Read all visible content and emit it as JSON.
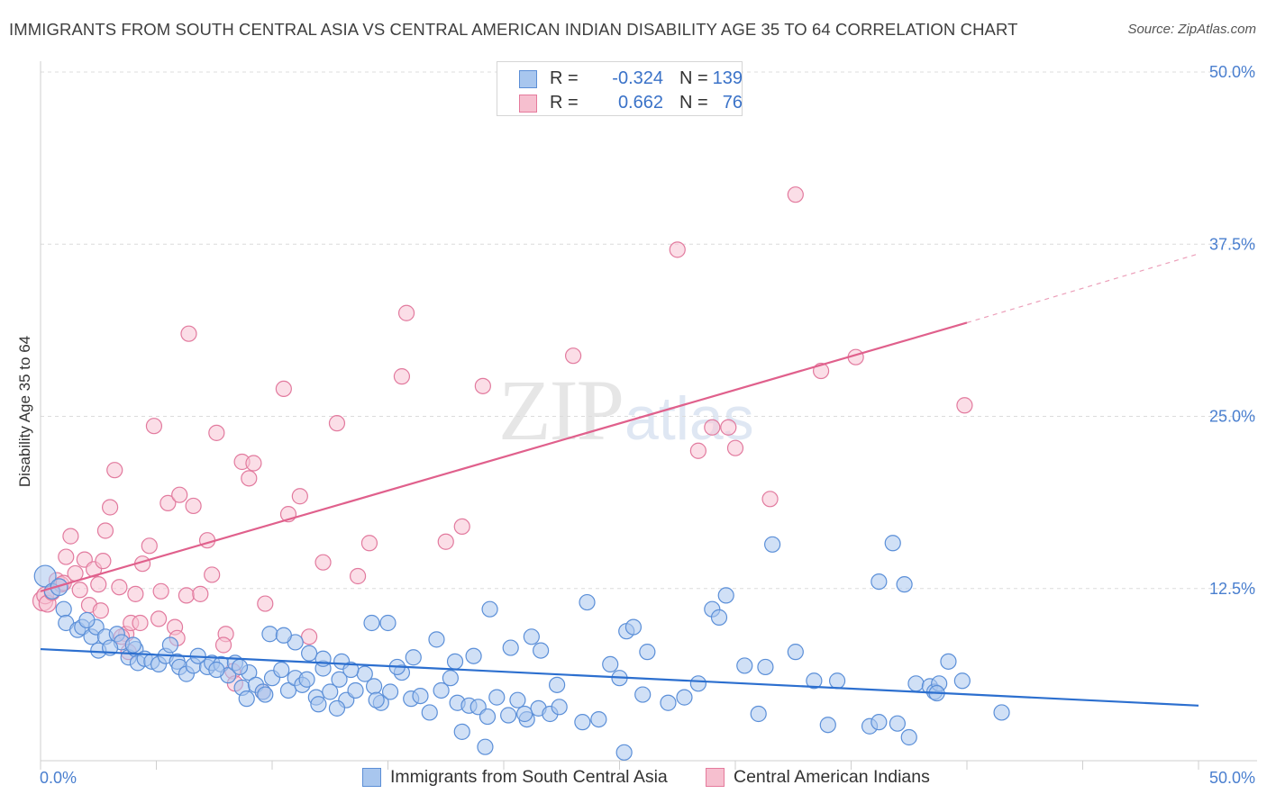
{
  "title": "IMMIGRANTS FROM SOUTH CENTRAL ASIA VS CENTRAL AMERICAN INDIAN DISABILITY AGE 35 TO 64 CORRELATION CHART",
  "source": "Source: ZipAtlas.com",
  "watermark": {
    "zip": "ZIP",
    "atlas": "atlas"
  },
  "legend": {
    "rows": [
      {
        "r_label": "R =",
        "r_value": "-0.324",
        "n_label": "N =",
        "n_value": "139",
        "color": "#a8c6ee",
        "border": "#5b8ed6"
      },
      {
        "r_label": "R =",
        "r_value": "0.662",
        "n_label": "N =",
        "n_value": "76",
        "color": "#f6bfcf",
        "border": "#e57a9c"
      }
    ]
  },
  "bottom_legend": {
    "series_a": "Immigrants from South Central Asia",
    "series_b": "Central American Indians"
  },
  "colors": {
    "blue_fill": "#a9c7ef",
    "blue_stroke": "#5b8fd8",
    "blue_line": "#2c6fcf",
    "pink_fill": "#f7c3d3",
    "pink_stroke": "#e27a9e",
    "pink_line": "#e0608c",
    "grid": "#dcdcdc",
    "tick_text": "#4a7fcf"
  },
  "chart_data": {
    "type": "scatter",
    "title": "IMMIGRANTS FROM SOUTH CENTRAL ASIA VS CENTRAL AMERICAN INDIAN DISABILITY AGE 35 TO 64 CORRELATION CHART",
    "xlabel": "",
    "ylabel": "Disability Age 35 to 64",
    "xlim": [
      0,
      50
    ],
    "ylim": [
      0,
      50
    ],
    "x_tick_labels": [
      "0.0%",
      "50.0%"
    ],
    "y_tick_labels": [
      "12.5%",
      "25.0%",
      "37.5%",
      "50.0%"
    ],
    "y_ticks": [
      12.5,
      25.0,
      37.5,
      50.0
    ],
    "series": [
      {
        "name": "Immigrants from South Central Asia",
        "r": -0.324,
        "n": 139,
        "trend": {
          "x": [
            0,
            50
          ],
          "y": [
            8.1,
            4.0
          ]
        },
        "points": [
          [
            0.2,
            13.4,
            1.4
          ],
          [
            0.5,
            12.3,
            1.0
          ],
          [
            0.8,
            12.6,
            1.1
          ],
          [
            1.0,
            11.0,
            1.0
          ],
          [
            1.1,
            10.0,
            1.0
          ],
          [
            1.6,
            9.5,
            1.0
          ],
          [
            1.8,
            9.7,
            1.0
          ],
          [
            2.2,
            9.0,
            1.0
          ],
          [
            2.4,
            9.7,
            1.0
          ],
          [
            2.5,
            8.0,
            1.0
          ],
          [
            2.8,
            9.0,
            1.0
          ],
          [
            3.3,
            9.2,
            1.0
          ],
          [
            3.5,
            8.6,
            1.0
          ],
          [
            3.8,
            7.5,
            1.0
          ],
          [
            4.1,
            8.1,
            1.0
          ],
          [
            4.2,
            7.1,
            1.0
          ],
          [
            4.5,
            7.4,
            1.0
          ],
          [
            4.8,
            7.2,
            1.0
          ],
          [
            5.1,
            7.0,
            1.0
          ],
          [
            5.4,
            7.6,
            1.0
          ],
          [
            5.9,
            7.2,
            1.0
          ],
          [
            6.0,
            6.8,
            1.0
          ],
          [
            6.3,
            6.3,
            1.0
          ],
          [
            6.6,
            6.9,
            1.0
          ],
          [
            7.2,
            6.8,
            1.0
          ],
          [
            7.4,
            7.1,
            1.0
          ],
          [
            7.8,
            7.0,
            1.0
          ],
          [
            8.1,
            6.2,
            1.0
          ],
          [
            8.4,
            7.1,
            1.0
          ],
          [
            8.7,
            5.3,
            1.0
          ],
          [
            9.0,
            6.4,
            1.0
          ],
          [
            9.3,
            5.5,
            1.0
          ],
          [
            9.6,
            5.0,
            1.0
          ],
          [
            10.0,
            6.0,
            1.0
          ],
          [
            10.4,
            6.6,
            1.0
          ],
          [
            10.7,
            5.1,
            1.0
          ],
          [
            11.0,
            6.0,
            1.0
          ],
          [
            11.3,
            5.5,
            1.0
          ],
          [
            11.5,
            5.9,
            1.0
          ],
          [
            11.9,
            4.6,
            1.0
          ],
          [
            12.2,
            6.7,
            1.0
          ],
          [
            12.5,
            5.0,
            1.0
          ],
          [
            12.9,
            5.9,
            1.0
          ],
          [
            13.2,
            4.4,
            1.0
          ],
          [
            13.6,
            5.1,
            1.0
          ],
          [
            14.0,
            6.3,
            1.0
          ],
          [
            14.4,
            5.4,
            1.0
          ],
          [
            14.7,
            4.2,
            1.0
          ],
          [
            15.1,
            5.0,
            1.0
          ],
          [
            15.6,
            6.4,
            1.0
          ],
          [
            16.0,
            4.5,
            1.0
          ],
          [
            16.4,
            4.7,
            1.0
          ],
          [
            16.8,
            3.5,
            1.0
          ],
          [
            17.3,
            5.1,
            1.0
          ],
          [
            17.7,
            6.0,
            1.0
          ],
          [
            18.0,
            4.2,
            1.0
          ],
          [
            18.5,
            4.0,
            1.0
          ],
          [
            18.9,
            3.9,
            1.0
          ],
          [
            19.3,
            3.2,
            1.0
          ],
          [
            19.7,
            4.6,
            1.0
          ],
          [
            20.2,
            3.3,
            1.0
          ],
          [
            20.6,
            4.4,
            1.0
          ],
          [
            21.0,
            3.0,
            1.0
          ],
          [
            21.5,
            3.8,
            1.0
          ],
          [
            22.0,
            3.4,
            1.0
          ],
          [
            22.4,
            3.9,
            1.0
          ],
          [
            2.0,
            10.2,
            1.0
          ],
          [
            3.0,
            8.2,
            1.0
          ],
          [
            4.0,
            8.4,
            1.0
          ],
          [
            5.6,
            8.4,
            1.0
          ],
          [
            6.8,
            7.6,
            1.0
          ],
          [
            7.6,
            6.6,
            1.0
          ],
          [
            8.6,
            6.8,
            1.0
          ],
          [
            9.9,
            9.2,
            1.0
          ],
          [
            11.0,
            8.6,
            1.0
          ],
          [
            12.2,
            7.4,
            1.0
          ],
          [
            13.0,
            7.2,
            1.0
          ],
          [
            14.3,
            10.0,
            1.0
          ],
          [
            15.0,
            10.0,
            1.0
          ],
          [
            16.1,
            7.5,
            1.0
          ],
          [
            17.1,
            8.8,
            1.0
          ],
          [
            17.9,
            7.2,
            1.0
          ],
          [
            19.4,
            11.0,
            1.0
          ],
          [
            20.3,
            8.2,
            1.0
          ],
          [
            21.2,
            9.0,
            1.0
          ],
          [
            23.6,
            11.5,
            1.0
          ],
          [
            24.6,
            7.0,
            1.0
          ],
          [
            25.3,
            9.4,
            1.0
          ],
          [
            25.6,
            9.7,
            1.0
          ],
          [
            25.0,
            6.0,
            1.0
          ],
          [
            26.2,
            7.9,
            1.0
          ],
          [
            27.1,
            4.2,
            1.0
          ],
          [
            27.8,
            4.6,
            1.0
          ],
          [
            28.4,
            5.6,
            1.0
          ],
          [
            29.0,
            11.0,
            1.0
          ],
          [
            29.3,
            10.4,
            1.0
          ],
          [
            29.6,
            12.0,
            1.0
          ],
          [
            30.4,
            6.9,
            1.0
          ],
          [
            31.3,
            6.8,
            1.0
          ],
          [
            31.0,
            3.4,
            1.0
          ],
          [
            31.6,
            15.7,
            1.0
          ],
          [
            32.6,
            7.9,
            1.0
          ],
          [
            33.4,
            5.8,
            1.0
          ],
          [
            34.0,
            2.6,
            1.0
          ],
          [
            34.4,
            5.8,
            1.0
          ],
          [
            35.8,
            2.5,
            1.0
          ],
          [
            36.2,
            13.0,
            1.0
          ],
          [
            36.8,
            15.8,
            1.0
          ],
          [
            37.0,
            2.7,
            1.0
          ],
          [
            37.3,
            12.8,
            1.0
          ],
          [
            37.5,
            1.7,
            1.0
          ],
          [
            37.8,
            5.6,
            1.0
          ],
          [
            38.4,
            5.4,
            1.0
          ],
          [
            38.6,
            5.0,
            1.0
          ],
          [
            38.8,
            5.6,
            1.0
          ],
          [
            38.7,
            4.9,
            1.0
          ],
          [
            39.2,
            7.2,
            1.0
          ],
          [
            39.8,
            5.8,
            1.0
          ],
          [
            41.5,
            3.5,
            1.0
          ],
          [
            36.2,
            2.8,
            1.0
          ],
          [
            19.2,
            1.0,
            1.0
          ],
          [
            18.2,
            2.1,
            1.0
          ],
          [
            14.5,
            4.4,
            1.0
          ],
          [
            12.8,
            3.8,
            1.0
          ],
          [
            12.0,
            4.1,
            1.0
          ],
          [
            24.1,
            3.0,
            1.0
          ],
          [
            25.2,
            0.6,
            1.0
          ],
          [
            23.4,
            2.8,
            1.0
          ],
          [
            22.3,
            5.5,
            1.0
          ],
          [
            26.0,
            4.8,
            1.0
          ],
          [
            21.6,
            8.0,
            1.0
          ],
          [
            20.9,
            3.4,
            1.0
          ],
          [
            13.4,
            6.6,
            1.0
          ],
          [
            10.5,
            9.1,
            1.0
          ],
          [
            11.6,
            7.8,
            1.0
          ],
          [
            15.4,
            6.8,
            1.0
          ],
          [
            18.7,
            7.6,
            1.0
          ],
          [
            9.7,
            4.8,
            1.0
          ],
          [
            8.9,
            4.5,
            1.0
          ]
        ]
      },
      {
        "name": "Central American Indians",
        "r": 0.662,
        "n": 76,
        "trend": {
          "x": [
            0,
            40
          ],
          "y": [
            12.3,
            31.8
          ]
        },
        "trend_extension": {
          "x": [
            40,
            50
          ],
          "y": [
            31.8,
            36.8
          ]
        },
        "points": [
          [
            0.1,
            11.6,
            1.3
          ],
          [
            0.2,
            12.0,
            1.1
          ],
          [
            0.3,
            11.4,
            1.1
          ],
          [
            0.5,
            12.2,
            1.0
          ],
          [
            0.7,
            13.1,
            1.0
          ],
          [
            0.9,
            12.8,
            1.0
          ],
          [
            1.1,
            14.8,
            1.0
          ],
          [
            1.3,
            16.3,
            1.0
          ],
          [
            1.5,
            13.6,
            1.0
          ],
          [
            1.7,
            12.4,
            1.0
          ],
          [
            1.9,
            14.6,
            1.0
          ],
          [
            2.1,
            11.3,
            1.0
          ],
          [
            2.3,
            13.9,
            1.0
          ],
          [
            2.5,
            12.8,
            1.0
          ],
          [
            2.7,
            14.5,
            1.0
          ],
          [
            2.8,
            16.7,
            1.0
          ],
          [
            3.0,
            18.4,
            1.0
          ],
          [
            3.2,
            21.1,
            1.0
          ],
          [
            3.4,
            12.6,
            1.0
          ],
          [
            3.7,
            9.2,
            1.0
          ],
          [
            3.9,
            10.0,
            1.0
          ],
          [
            4.1,
            12.1,
            1.0
          ],
          [
            4.4,
            14.3,
            1.0
          ],
          [
            4.7,
            15.6,
            1.0
          ],
          [
            4.9,
            24.3,
            1.0
          ],
          [
            5.2,
            12.3,
            1.0
          ],
          [
            5.5,
            18.7,
            1.0
          ],
          [
            5.8,
            9.7,
            1.0
          ],
          [
            6.0,
            19.3,
            1.0
          ],
          [
            6.3,
            12.0,
            1.0
          ],
          [
            6.4,
            31.0,
            1.0
          ],
          [
            6.6,
            18.5,
            1.0
          ],
          [
            6.9,
            12.1,
            1.0
          ],
          [
            7.2,
            16.0,
            1.0
          ],
          [
            7.4,
            13.5,
            1.0
          ],
          [
            7.6,
            23.8,
            1.0
          ],
          [
            8.0,
            9.2,
            1.0
          ],
          [
            8.3,
            6.5,
            1.0
          ],
          [
            8.7,
            21.7,
            1.0
          ],
          [
            9.0,
            20.5,
            1.0
          ],
          [
            9.2,
            21.6,
            1.0
          ],
          [
            9.7,
            11.4,
            1.0
          ],
          [
            10.5,
            27.0,
            1.0
          ],
          [
            10.7,
            17.9,
            1.0
          ],
          [
            11.2,
            19.2,
            1.0
          ],
          [
            11.6,
            9.0,
            1.0
          ],
          [
            12.2,
            14.4,
            1.0
          ],
          [
            12.8,
            24.5,
            1.0
          ],
          [
            13.7,
            13.4,
            1.0
          ],
          [
            14.2,
            15.8,
            1.0
          ],
          [
            15.6,
            27.9,
            1.0
          ],
          [
            15.8,
            32.5,
            1.0
          ],
          [
            17.5,
            15.9,
            1.0
          ],
          [
            18.2,
            17.0,
            1.0
          ],
          [
            19.1,
            27.2,
            1.0
          ],
          [
            23.0,
            29.4,
            1.0
          ],
          [
            27.5,
            37.1,
            1.0
          ],
          [
            28.4,
            22.5,
            1.0
          ],
          [
            29.0,
            24.2,
            1.0
          ],
          [
            29.7,
            24.2,
            1.0
          ],
          [
            30.0,
            22.7,
            1.0
          ],
          [
            31.5,
            19.0,
            1.0
          ],
          [
            32.6,
            41.1,
            1.0
          ],
          [
            33.7,
            28.3,
            1.0
          ],
          [
            35.2,
            29.3,
            1.0
          ],
          [
            39.9,
            25.8,
            1.0
          ],
          [
            3.5,
            9.0,
            1.0
          ],
          [
            5.9,
            8.9,
            1.0
          ],
          [
            7.9,
            8.4,
            1.0
          ],
          [
            9.6,
            5.0,
            1.0
          ],
          [
            8.4,
            5.6,
            1.0
          ],
          [
            5.1,
            10.3,
            1.0
          ],
          [
            4.3,
            10.0,
            1.0
          ],
          [
            3.8,
            7.9,
            1.0
          ],
          [
            1.0,
            12.9,
            1.0
          ],
          [
            2.6,
            10.9,
            1.0
          ]
        ]
      }
    ]
  }
}
